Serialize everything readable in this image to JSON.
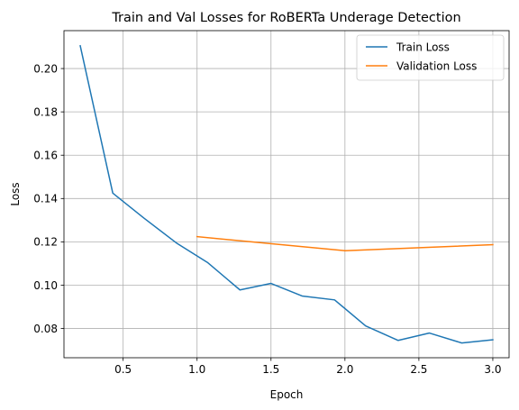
{
  "chart_data": {
    "type": "line",
    "title": "Train and Val Losses for RoBERTa Underage Detection",
    "xlabel": "Epoch",
    "ylabel": "Loss",
    "xlim": [
      0.1,
      3.11
    ],
    "ylim": [
      0.0665,
      0.2175
    ],
    "xticks": [
      0.5,
      1.0,
      1.5,
      2.0,
      2.5,
      3.0
    ],
    "xtick_labels": [
      "0.5",
      "1.0",
      "1.5",
      "2.0",
      "2.5",
      "3.0"
    ],
    "yticks": [
      0.08,
      0.1,
      0.12,
      0.14,
      0.16,
      0.18,
      0.2
    ],
    "ytick_labels": [
      "0.08",
      "0.10",
      "0.12",
      "0.14",
      "0.16",
      "0.18",
      "0.20"
    ],
    "grid": true,
    "legend_position": "top-right",
    "series": [
      {
        "name": "Train Loss",
        "color": "#1f77b4",
        "x": [
          0.21,
          0.43,
          0.64,
          0.86,
          1.07,
          1.29,
          1.5,
          1.71,
          1.93,
          2.14,
          2.36,
          2.57,
          2.79,
          3.0
        ],
        "y": [
          0.2105,
          0.1425,
          0.131,
          0.1195,
          0.1105,
          0.0978,
          0.1008,
          0.095,
          0.0932,
          0.0812,
          0.0745,
          0.0779,
          0.0733,
          0.0748
        ]
      },
      {
        "name": "Validation Loss",
        "color": "#ff7f0e",
        "x": [
          1.0,
          2.0,
          3.0
        ],
        "y": [
          0.1224,
          0.1159,
          0.1187
        ]
      }
    ]
  }
}
